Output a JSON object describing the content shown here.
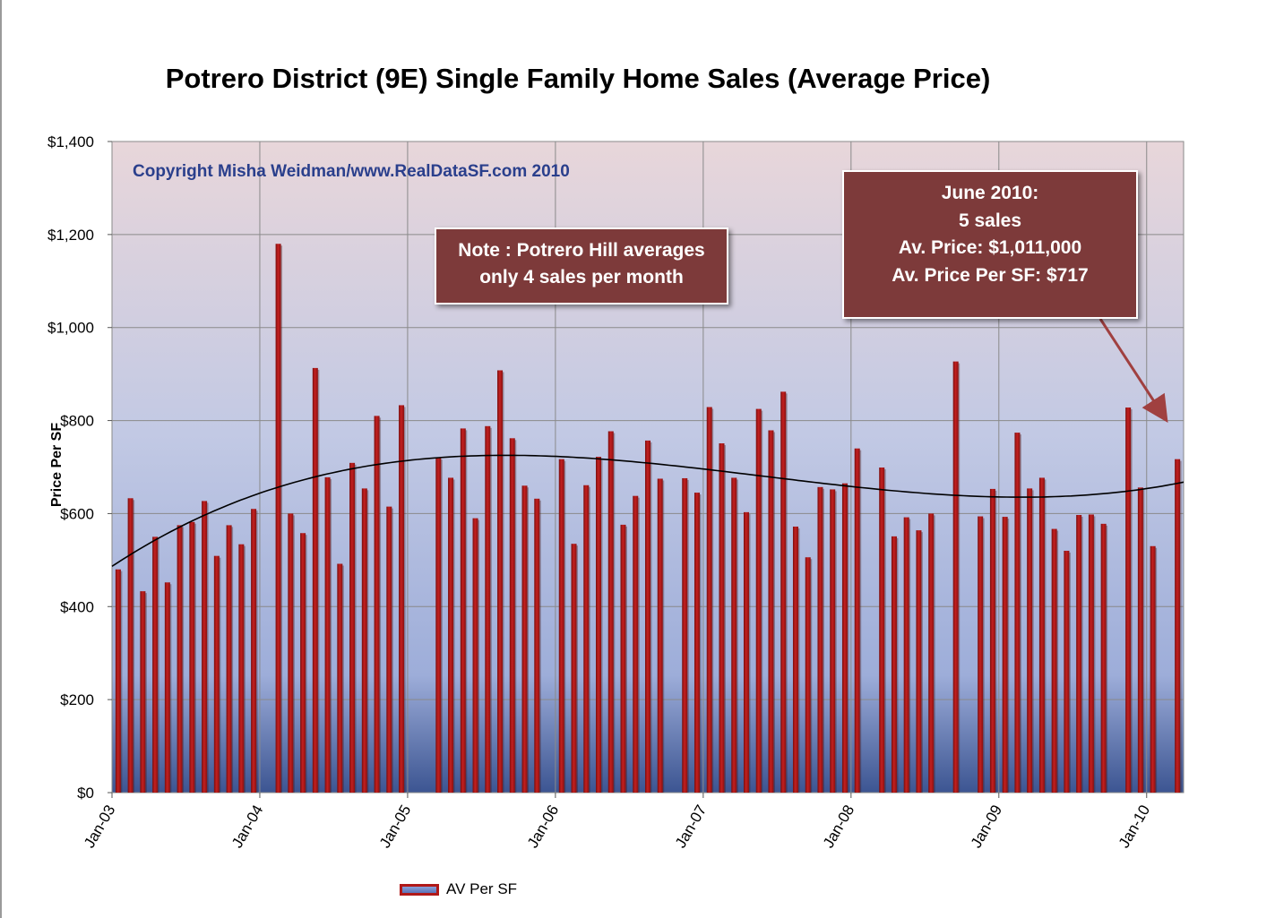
{
  "chart_data": {
    "type": "bar",
    "title": "Potrero District (9E) Single Family Home Sales (Average Price)",
    "ylabel": "Price Per SF",
    "xlabel": "",
    "ylim": [
      0,
      1400
    ],
    "yticks": [
      "$0",
      "$200",
      "$400",
      "$600",
      "$800",
      "$1,000",
      "$1,200",
      "$1,400"
    ],
    "xticks": [
      "Jan-03",
      "Jan-04",
      "Jan-05",
      "Jan-06",
      "Jan-07",
      "Jan-08",
      "Jan-09",
      "Jan-10"
    ],
    "grid": true,
    "legend_position": "bottom",
    "series": [
      {
        "name": "AV Per SF",
        "color": "#b01818",
        "values": [
          480,
          633,
          433,
          550,
          452,
          575,
          582,
          627,
          509,
          575,
          534,
          610,
          null,
          1180,
          600,
          558,
          913,
          678,
          492,
          709,
          654,
          810,
          615,
          833,
          null,
          null,
          720,
          677,
          783,
          590,
          788,
          908,
          762,
          660,
          632,
          null,
          717,
          535,
          661,
          722,
          777,
          576,
          638,
          757,
          675,
          null,
          676,
          645,
          829,
          751,
          677,
          603,
          825,
          779,
          862,
          572,
          506,
          657,
          652,
          665,
          740,
          null,
          699,
          551,
          592,
          564,
          600,
          null,
          927,
          null,
          594,
          653,
          593,
          774,
          654,
          677,
          567,
          520,
          597,
          598,
          578,
          null,
          828,
          656,
          530,
          null,
          717
        ]
      }
    ],
    "trendline": {
      "type": "polynomial",
      "color": "#000000"
    }
  },
  "annotations": {
    "copyright": "Copyright Misha Weidman/www.RealDataSF.com 2010",
    "note_lines": [
      "Note : Potrero Hill averages",
      "only  4  sales per month"
    ],
    "info_lines": [
      "June 2010:",
      "5 sales",
      "Av.  Price:   $1,011,000",
      "Av.  Price Per SF:  $717"
    ]
  },
  "colors": {
    "bar": "#b01818",
    "callout_fill": "#7d3a3a",
    "copyright_text": "#2a3f8c"
  }
}
